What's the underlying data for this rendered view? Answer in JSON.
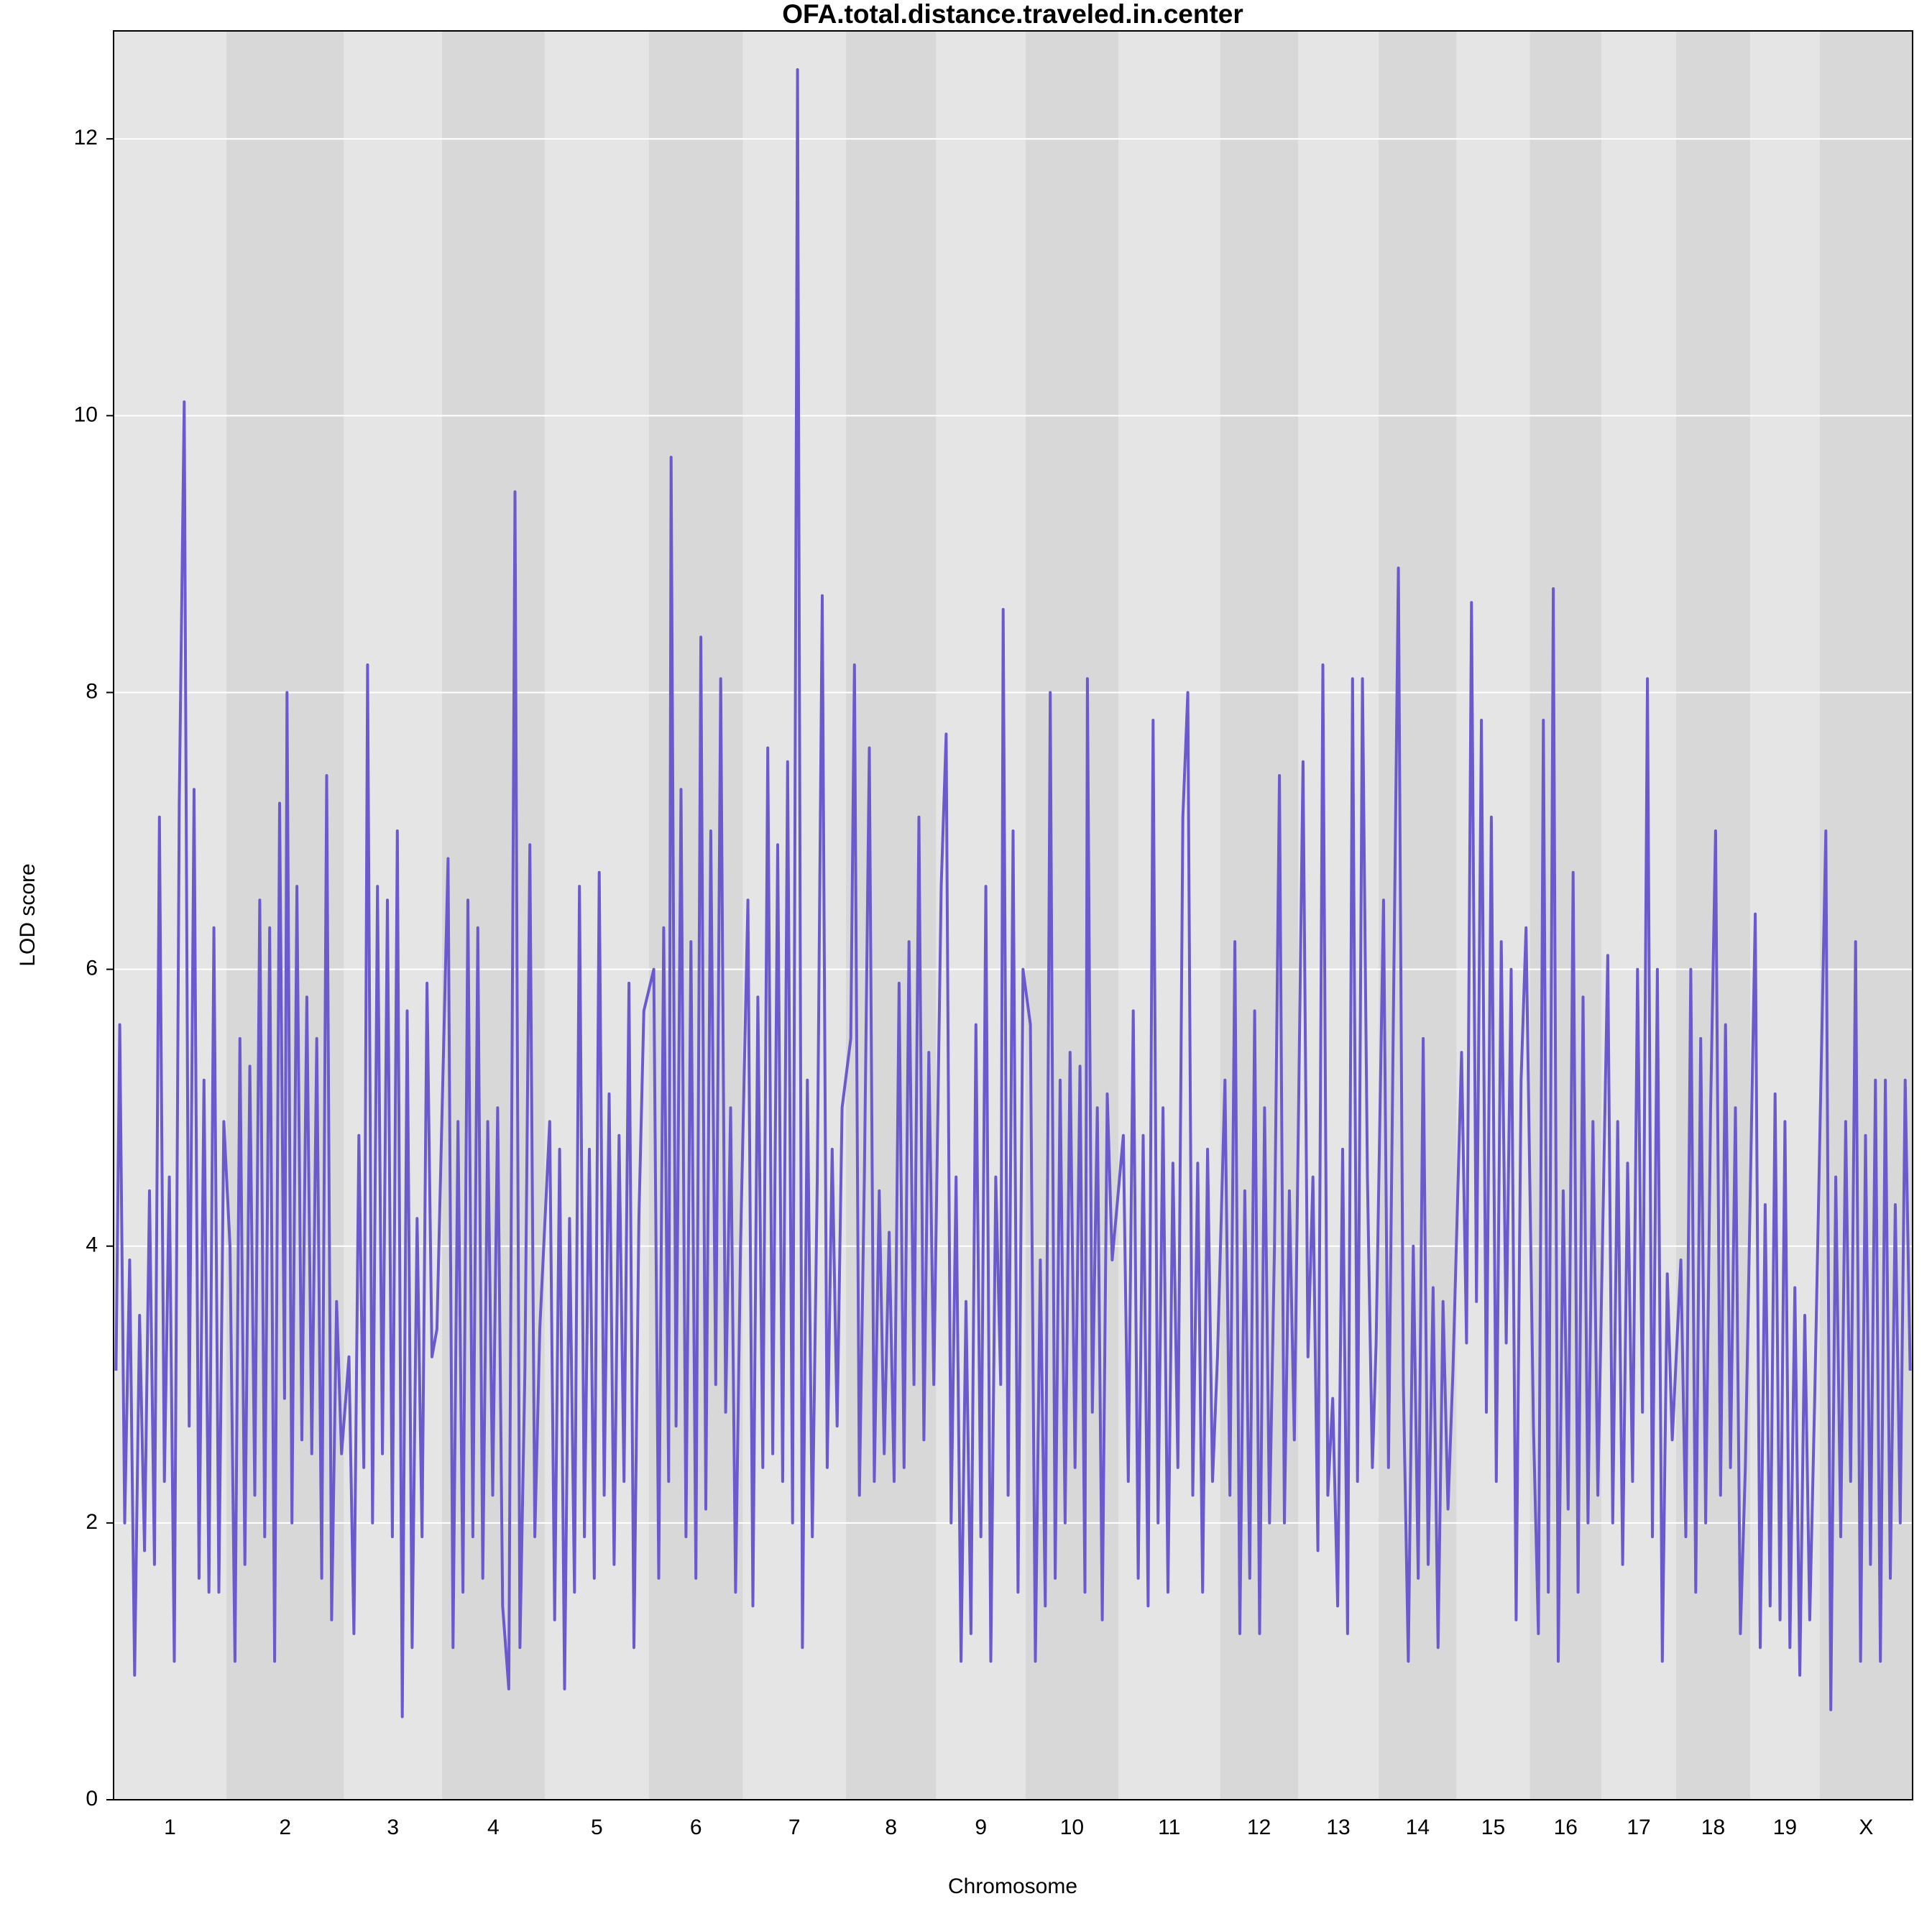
{
  "chart_data": {
    "type": "line",
    "title": "OFA.total.distance.traveled.in.center",
    "xlabel": "Chromosome",
    "ylabel": "LOD score",
    "chromosomes": [
      "1",
      "2",
      "3",
      "4",
      "5",
      "6",
      "7",
      "8",
      "9",
      "10",
      "11",
      "12",
      "13",
      "14",
      "15",
      "16",
      "17",
      "18",
      "19",
      "X"
    ],
    "chromosome_bounds": [
      0,
      91,
      186,
      265,
      348,
      432,
      508,
      591,
      664,
      736,
      811,
      893,
      956,
      1021,
      1084,
      1143,
      1201,
      1261,
      1321,
      1377,
      1452
    ],
    "band_colors": [
      "#e5e5e5",
      "#d8d8d8"
    ],
    "color": "#6a5acd",
    "xlim": [
      0,
      1452
    ],
    "ylim": [
      0,
      12.78
    ],
    "yticks": [
      0,
      2,
      4,
      6,
      8,
      10,
      12
    ],
    "grid": true,
    "x": [
      2,
      5,
      9,
      13,
      17,
      21,
      25,
      29,
      33,
      37,
      41,
      45,
      49,
      53,
      57,
      61,
      65,
      69,
      73,
      77,
      81,
      85,
      89,
      94,
      98,
      102,
      106,
      110,
      114,
      118,
      122,
      126,
      130,
      134,
      138,
      140,
      144,
      148,
      152,
      156,
      160,
      164,
      168,
      172,
      176,
      180,
      184,
      190,
      194,
      198,
      202,
      205,
      209,
      213,
      217,
      221,
      225,
      229,
      233,
      237,
      241,
      245,
      249,
      253,
      257,
      261,
      270,
      274,
      278,
      282,
      286,
      290,
      294,
      298,
      302,
      306,
      310,
      314,
      319,
      324,
      328,
      332,
      336,
      340,
      344,
      352,
      356,
      360,
      364,
      368,
      372,
      376,
      380,
      384,
      388,
      392,
      396,
      400,
      404,
      408,
      412,
      416,
      420,
      424,
      428,
      436,
      440,
      444,
      448,
      450,
      454,
      458,
      462,
      466,
      470,
      474,
      478,
      482,
      486,
      490,
      494,
      498,
      502,
      506,
      512,
      516,
      520,
      524,
      528,
      532,
      536,
      540,
      544,
      548,
      552,
      556,
      560,
      564,
      568,
      572,
      576,
      580,
      584,
      588,
      595,
      598,
      602,
      606,
      610,
      614,
      618,
      622,
      626,
      630,
      634,
      638,
      642,
      646,
      650,
      654,
      658,
      662,
      668,
      672,
      676,
      680,
      684,
      688,
      692,
      696,
      700,
      704,
      708,
      712,
      716,
      718,
      722,
      726,
      730,
      734,
      740,
      744,
      748,
      752,
      756,
      760,
      764,
      768,
      772,
      776,
      780,
      784,
      786,
      790,
      794,
      798,
      802,
      806,
      815,
      819,
      823,
      827,
      831,
      835,
      839,
      843,
      847,
      851,
      855,
      859,
      863,
      867,
      871,
      875,
      879,
      883,
      887,
      891,
      897,
      901,
      905,
      909,
      913,
      917,
      921,
      925,
      929,
      933,
      937,
      941,
      945,
      949,
      953,
      960,
      964,
      968,
      972,
      976,
      980,
      984,
      988,
      992,
      996,
      1000,
      1004,
      1008,
      1012,
      1016,
      1019,
      1025,
      1029,
      1033,
      1037,
      1041,
      1045,
      1049,
      1053,
      1057,
      1061,
      1065,
      1069,
      1073,
      1077,
      1081,
      1088,
      1092,
      1096,
      1100,
      1104,
      1108,
      1112,
      1116,
      1120,
      1124,
      1128,
      1132,
      1136,
      1140,
      1146,
      1150,
      1154,
      1158,
      1162,
      1166,
      1170,
      1174,
      1178,
      1182,
      1186,
      1190,
      1194,
      1198,
      1206,
      1210,
      1214,
      1218,
      1222,
      1226,
      1230,
      1234,
      1238,
      1242,
      1246,
      1250,
      1254,
      1258,
      1265,
      1269,
      1273,
      1277,
      1281,
      1285,
      1289,
      1293,
      1297,
      1301,
      1305,
      1309,
      1313,
      1317,
      1325,
      1329,
      1333,
      1337,
      1341,
      1345,
      1349,
      1353,
      1357,
      1361,
      1365,
      1369,
      1373,
      1382,
      1386,
      1390,
      1394,
      1398,
      1402,
      1406,
      1410,
      1414,
      1418,
      1422,
      1426,
      1430,
      1434,
      1438,
      1442,
      1446,
      1450
    ],
    "values": [
      3.1,
      5.6,
      2.0,
      3.9,
      0.9,
      3.5,
      1.8,
      4.4,
      1.7,
      7.1,
      2.3,
      4.5,
      1.0,
      7.2,
      10.1,
      2.7,
      7.3,
      1.6,
      5.2,
      1.5,
      6.3,
      1.5,
      4.9,
      4.0,
      1.0,
      5.5,
      1.7,
      5.3,
      2.2,
      6.5,
      1.9,
      6.3,
      1.0,
      7.2,
      2.9,
      8.0,
      2.0,
      6.6,
      2.6,
      5.8,
      2.5,
      5.5,
      1.6,
      7.4,
      1.3,
      3.6,
      2.5,
      3.2,
      1.2,
      4.8,
      2.4,
      8.2,
      2.0,
      6.6,
      2.5,
      6.5,
      1.9,
      7.0,
      0.6,
      5.7,
      1.1,
      4.2,
      1.9,
      5.9,
      3.2,
      3.4,
      6.8,
      1.1,
      4.9,
      1.5,
      6.5,
      1.9,
      6.3,
      1.6,
      4.9,
      2.2,
      5.0,
      1.4,
      0.8,
      9.45,
      1.1,
      3.1,
      6.9,
      1.9,
      3.4,
      4.9,
      1.3,
      4.7,
      0.8,
      4.2,
      1.5,
      6.6,
      1.9,
      4.7,
      1.6,
      6.7,
      2.2,
      5.1,
      1.7,
      4.8,
      2.3,
      5.9,
      1.1,
      4.2,
      5.7,
      6.0,
      1.6,
      6.3,
      2.3,
      9.7,
      2.7,
      7.3,
      1.9,
      6.2,
      1.6,
      8.4,
      2.1,
      7.0,
      3.0,
      8.1,
      2.8,
      5.0,
      1.5,
      4.0,
      6.5,
      1.4,
      5.8,
      2.4,
      7.6,
      2.5,
      6.9,
      2.3,
      7.5,
      2.0,
      12.5,
      1.1,
      5.2,
      1.9,
      4.5,
      8.7,
      2.4,
      4.7,
      2.7,
      5.0,
      5.5,
      8.2,
      2.2,
      4.5,
      7.6,
      2.3,
      4.4,
      2.5,
      4.1,
      2.3,
      5.9,
      2.4,
      6.2,
      3.0,
      7.1,
      2.6,
      5.4,
      3.0,
      6.6,
      7.7,
      2.0,
      4.5,
      1.0,
      3.6,
      1.2,
      5.6,
      1.9,
      6.6,
      1.0,
      4.5,
      3.0,
      8.6,
      2.2,
      7.0,
      1.5,
      6.0,
      5.6,
      1.0,
      3.9,
      1.4,
      8.0,
      1.6,
      5.2,
      2.0,
      5.4,
      2.4,
      5.3,
      1.5,
      8.1,
      2.8,
      5.0,
      1.3,
      5.1,
      3.9,
      4.8,
      2.3,
      5.7,
      1.6,
      4.8,
      1.4,
      7.8,
      2.0,
      5.0,
      1.5,
      4.6,
      2.4,
      7.1,
      8.0,
      2.2,
      4.6,
      1.5,
      4.7,
      2.3,
      3.2,
      5.2,
      2.2,
      6.2,
      1.2,
      4.4,
      1.6,
      5.7,
      1.2,
      5.0,
      2.0,
      4.0,
      7.4,
      2.0,
      4.4,
      2.6,
      7.5,
      3.2,
      4.5,
      1.8,
      8.2,
      2.2,
      2.9,
      1.4,
      4.7,
      1.2,
      8.1,
      2.3,
      8.1,
      4.5,
      2.4,
      3.3,
      6.5,
      2.4,
      5.7,
      8.9,
      3.0,
      1.0,
      4.0,
      1.6,
      5.5,
      1.7,
      3.7,
      1.1,
      3.6,
      2.1,
      3.1,
      5.4,
      3.3,
      8.65,
      3.6,
      7.8,
      2.8,
      7.1,
      2.3,
      6.2,
      3.3,
      6.0,
      1.3,
      5.2,
      6.3,
      2.7,
      1.2,
      7.8,
      1.5,
      8.75,
      1.0,
      4.4,
      2.1,
      6.7,
      1.5,
      5.8,
      2.0,
      4.9,
      2.2,
      6.1,
      2.0,
      4.9,
      1.7,
      4.6,
      2.3,
      6.0,
      2.8,
      8.1,
      1.9,
      6.0,
      1.0,
      3.8,
      2.6,
      3.9,
      1.9,
      6.0,
      1.5,
      5.5,
      2.0,
      5.0,
      7.0,
      2.2,
      5.6,
      2.4,
      5.0,
      1.2,
      2.4,
      6.4,
      1.1,
      4.3,
      1.4,
      5.1,
      1.3,
      4.9,
      1.1,
      3.7,
      0.9,
      3.5,
      1.3,
      2.9,
      7.0,
      0.65,
      4.5,
      1.9,
      4.9,
      2.3,
      6.2,
      1.0,
      4.8,
      1.7,
      5.2,
      1.0,
      5.2,
      1.6,
      4.3,
      2.0,
      5.2,
      3.1
    ]
  }
}
